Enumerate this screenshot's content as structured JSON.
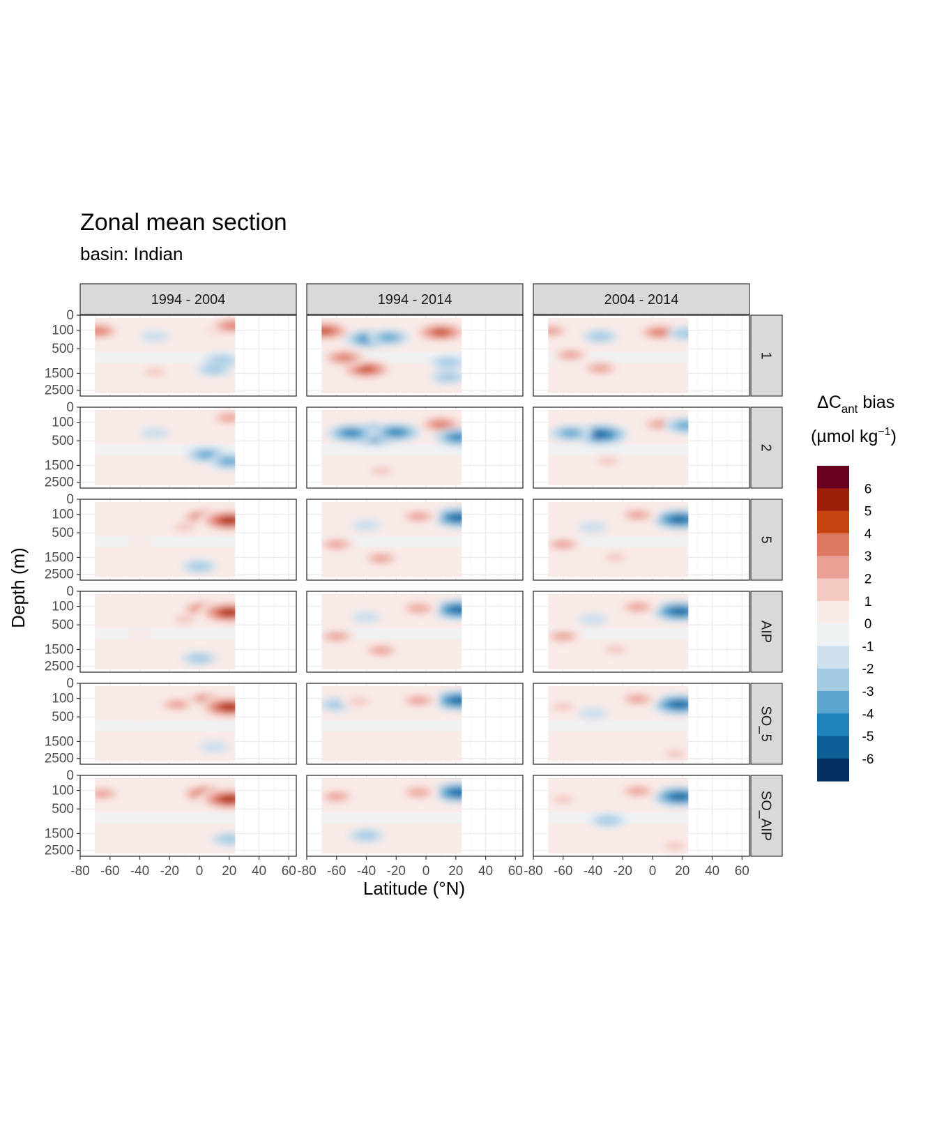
{
  "chart_data": {
    "type": "contour-facet",
    "title": "Zonal mean section",
    "subtitle": "basin: Indian",
    "xlabel": "Latitude (°N)",
    "ylabel": "Depth (m)",
    "xlim": [
      -80,
      65
    ],
    "x_ticks": [
      -80,
      -60,
      -40,
      -20,
      0,
      20,
      40,
      60
    ],
    "x_tick_labels": [
      "-80",
      "-60",
      "-40",
      "-20",
      "0",
      "20",
      "40",
      "60"
    ],
    "y_ticks": [
      0,
      100,
      500,
      1500,
      2500
    ],
    "y_tick_labels": [
      "0",
      "100",
      "500",
      "1500",
      "2500"
    ],
    "data_lat_range": [
      -70,
      24
    ],
    "columns": [
      "1994 - 2004",
      "1994 - 2014",
      "2004 - 2014"
    ],
    "rows": [
      "1",
      "2",
      "5",
      "AIP",
      "SO_5",
      "SO_AIP"
    ],
    "legend": {
      "title_main": "ΔC",
      "title_sub": "ant",
      "title_tail": " bias",
      "unit_open": "(µmol kg",
      "unit_sup": "−1",
      "unit_close": ")",
      "labels": [
        "6",
        "5",
        "4",
        "3",
        "2",
        "1",
        "0",
        "-1",
        "-2",
        "-3",
        "-4",
        "-5",
        "-6"
      ],
      "colors": [
        "#67001f",
        "#9c1e0b",
        "#c5430f",
        "#df7a62",
        "#eba096",
        "#f3c9c2",
        "#f9ebe8",
        "#edf2f5",
        "#cfe0ee",
        "#a5cbe3",
        "#5aa6cf",
        "#1f82bc",
        "#0c5e97",
        "#053061"
      ]
    },
    "panels": [
      {
        "row": "1",
        "column": "1994 - 2004",
        "features": [
          {
            "lat": -68,
            "depth": 110,
            "value": 4
          },
          {
            "lat": -30,
            "depth": 200,
            "value": -1
          },
          {
            "lat": 15,
            "depth": 90,
            "value": 3
          },
          {
            "lat": 22,
            "depth": 50,
            "value": 4
          },
          {
            "lat": 15,
            "depth": 900,
            "value": -2
          },
          {
            "lat": 10,
            "depth": 1300,
            "value": -2
          },
          {
            "lat": -30,
            "depth": 1450,
            "value": 2
          },
          {
            "lat": -50,
            "depth": 1800,
            "value": 1
          }
        ]
      },
      {
        "row": "1",
        "column": "1994 - 2014",
        "features": [
          {
            "lat": -68,
            "depth": 110,
            "value": 5
          },
          {
            "lat": -38,
            "depth": 250,
            "value": -4
          },
          {
            "lat": -25,
            "depth": 220,
            "value": -3
          },
          {
            "lat": 10,
            "depth": 130,
            "value": 5
          },
          {
            "lat": -40,
            "depth": 1300,
            "value": 5
          },
          {
            "lat": -55,
            "depth": 800,
            "value": 4
          },
          {
            "lat": 15,
            "depth": 1000,
            "value": -2
          },
          {
            "lat": 15,
            "depth": 1700,
            "value": -2
          }
        ]
      },
      {
        "row": "1",
        "column": "2004 - 2014",
        "features": [
          {
            "lat": -68,
            "depth": 110,
            "value": 3
          },
          {
            "lat": -35,
            "depth": 200,
            "value": -2
          },
          {
            "lat": 5,
            "depth": 130,
            "value": 4
          },
          {
            "lat": -35,
            "depth": 1250,
            "value": 3
          },
          {
            "lat": -55,
            "depth": 700,
            "value": 3
          },
          {
            "lat": 22,
            "depth": 150,
            "value": -2
          }
        ]
      },
      {
        "row": "2",
        "column": "1994 - 2004",
        "features": [
          {
            "lat": 20,
            "depth": 50,
            "value": 3
          },
          {
            "lat": -30,
            "depth": 300,
            "value": -1
          },
          {
            "lat": 5,
            "depth": 1000,
            "value": -3
          },
          {
            "lat": 20,
            "depth": 1300,
            "value": -3
          },
          {
            "lat": -30,
            "depth": 2000,
            "value": 1
          }
        ]
      },
      {
        "row": "2",
        "column": "1994 - 2014",
        "features": [
          {
            "lat": -35,
            "depth": 320,
            "value": -6
          },
          {
            "lat": -50,
            "depth": 300,
            "value": -4
          },
          {
            "lat": -20,
            "depth": 280,
            "value": -4
          },
          {
            "lat": 10,
            "depth": 130,
            "value": 4
          },
          {
            "lat": -30,
            "depth": 1800,
            "value": 2
          },
          {
            "lat": 22,
            "depth": 400,
            "value": -4
          }
        ]
      },
      {
        "row": "2",
        "column": "2004 - 2014",
        "features": [
          {
            "lat": -35,
            "depth": 330,
            "value": -5
          },
          {
            "lat": -55,
            "depth": 300,
            "value": -3
          },
          {
            "lat": 5,
            "depth": 130,
            "value": 3
          },
          {
            "lat": -30,
            "depth": 1300,
            "value": 2
          },
          {
            "lat": 22,
            "depth": 150,
            "value": -3
          }
        ]
      },
      {
        "row": "5",
        "column": "1994 - 2004",
        "features": [
          {
            "lat": 5,
            "depth": 150,
            "value": 5
          },
          {
            "lat": 20,
            "depth": 200,
            "value": 6
          },
          {
            "lat": -10,
            "depth": 350,
            "value": 2
          },
          {
            "lat": 0,
            "depth": 2000,
            "value": -2
          },
          {
            "lat": -40,
            "depth": 800,
            "value": 1
          }
        ]
      },
      {
        "row": "5",
        "column": "1994 - 2014",
        "features": [
          {
            "lat": 22,
            "depth": 150,
            "value": -5
          },
          {
            "lat": -5,
            "depth": 130,
            "value": 3
          },
          {
            "lat": -30,
            "depth": 1550,
            "value": 3
          },
          {
            "lat": -60,
            "depth": 900,
            "value": 3
          },
          {
            "lat": -40,
            "depth": 300,
            "value": -1
          }
        ]
      },
      {
        "row": "5",
        "column": "2004 - 2014",
        "features": [
          {
            "lat": 18,
            "depth": 180,
            "value": -5
          },
          {
            "lat": -10,
            "depth": 110,
            "value": 3
          },
          {
            "lat": -25,
            "depth": 1500,
            "value": 2
          },
          {
            "lat": -60,
            "depth": 900,
            "value": 3
          },
          {
            "lat": -40,
            "depth": 350,
            "value": -1
          }
        ]
      },
      {
        "row": "AIP",
        "column": "1994 - 2004",
        "features": [
          {
            "lat": 5,
            "depth": 150,
            "value": 5
          },
          {
            "lat": 20,
            "depth": 200,
            "value": 6
          },
          {
            "lat": -10,
            "depth": 350,
            "value": 2
          },
          {
            "lat": 0,
            "depth": 2000,
            "value": -2
          },
          {
            "lat": -40,
            "depth": 800,
            "value": 1
          }
        ]
      },
      {
        "row": "AIP",
        "column": "1994 - 2014",
        "features": [
          {
            "lat": 22,
            "depth": 150,
            "value": -5
          },
          {
            "lat": -5,
            "depth": 130,
            "value": 3
          },
          {
            "lat": -30,
            "depth": 1550,
            "value": 3
          },
          {
            "lat": -60,
            "depth": 900,
            "value": 3
          },
          {
            "lat": -40,
            "depth": 300,
            "value": -1
          }
        ]
      },
      {
        "row": "AIP",
        "column": "2004 - 2014",
        "features": [
          {
            "lat": 18,
            "depth": 180,
            "value": -5
          },
          {
            "lat": -10,
            "depth": 110,
            "value": 3
          },
          {
            "lat": -25,
            "depth": 1500,
            "value": 2
          },
          {
            "lat": -60,
            "depth": 900,
            "value": 3
          },
          {
            "lat": -40,
            "depth": 350,
            "value": -1
          }
        ]
      },
      {
        "row": "SO_5",
        "column": "1994 - 2004",
        "features": [
          {
            "lat": 5,
            "depth": 150,
            "value": 5
          },
          {
            "lat": 20,
            "depth": 250,
            "value": 6
          },
          {
            "lat": -15,
            "depth": 200,
            "value": 3
          },
          {
            "lat": 10,
            "depth": 1800,
            "value": -1
          },
          {
            "lat": -40,
            "depth": 400,
            "value": 1
          }
        ]
      },
      {
        "row": "SO_5",
        "column": "1994 - 2014",
        "features": [
          {
            "lat": 22,
            "depth": 130,
            "value": -5
          },
          {
            "lat": -5,
            "depth": 130,
            "value": 3
          },
          {
            "lat": -60,
            "depth": 200,
            "value": -2
          },
          {
            "lat": -45,
            "depth": 150,
            "value": 2
          },
          {
            "lat": 0,
            "depth": 1300,
            "value": 1
          }
        ]
      },
      {
        "row": "SO_5",
        "column": "2004 - 2014",
        "features": [
          {
            "lat": 18,
            "depth": 200,
            "value": -5
          },
          {
            "lat": -10,
            "depth": 110,
            "value": 3
          },
          {
            "lat": -60,
            "depth": 250,
            "value": 2
          },
          {
            "lat": 15,
            "depth": 2200,
            "value": 2
          },
          {
            "lat": -40,
            "depth": 400,
            "value": -1
          }
        ]
      },
      {
        "row": "SO_AIP",
        "column": "1994 - 2004",
        "features": [
          {
            "lat": 5,
            "depth": 150,
            "value": 5
          },
          {
            "lat": 20,
            "depth": 250,
            "value": 6
          },
          {
            "lat": -65,
            "depth": 150,
            "value": 3
          },
          {
            "lat": 20,
            "depth": 1800,
            "value": -2
          },
          {
            "lat": -40,
            "depth": 400,
            "value": 1
          }
        ]
      },
      {
        "row": "SO_AIP",
        "column": "1994 - 2014",
        "features": [
          {
            "lat": 22,
            "depth": 130,
            "value": -5
          },
          {
            "lat": -5,
            "depth": 130,
            "value": 3
          },
          {
            "lat": -60,
            "depth": 200,
            "value": 3
          },
          {
            "lat": -40,
            "depth": 1600,
            "value": -2
          },
          {
            "lat": 0,
            "depth": 1300,
            "value": 1
          }
        ]
      },
      {
        "row": "SO_AIP",
        "column": "2004 - 2014",
        "features": [
          {
            "lat": 18,
            "depth": 200,
            "value": -5
          },
          {
            "lat": -10,
            "depth": 110,
            "value": 3
          },
          {
            "lat": -60,
            "depth": 250,
            "value": 2
          },
          {
            "lat": 15,
            "depth": 2200,
            "value": 2
          },
          {
            "lat": -30,
            "depth": 900,
            "value": -2
          }
        ]
      }
    ]
  }
}
